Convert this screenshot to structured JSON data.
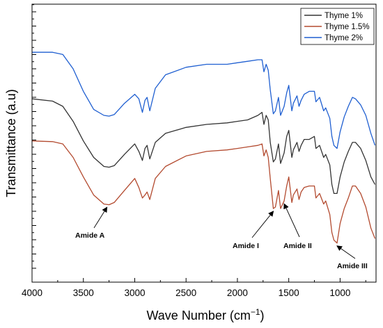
{
  "chart_data": {
    "type": "line",
    "xlabel": "Wave Number (cm",
    "xlabel_sup": "−1",
    "xlabel_close": ")",
    "ylabel": "Transmittance (a.u)",
    "xlim": [
      4000,
      650
    ],
    "x_reversed": true,
    "x_ticks": [
      4000,
      3500,
      3000,
      2500,
      2000,
      1500,
      1000
    ],
    "y_ticks_labeled": false,
    "grid": false,
    "legend_position": "top-right",
    "series": [
      {
        "name": "Thyme 1%",
        "color": "#333333",
        "x": [
          4000,
          3800,
          3700,
          3600,
          3500,
          3400,
          3300,
          3250,
          3200,
          3100,
          3000,
          2960,
          2925,
          2900,
          2880,
          2853,
          2800,
          2700,
          2500,
          2300,
          2100,
          2000,
          1900,
          1800,
          1760,
          1742,
          1720,
          1700,
          1680,
          1650,
          1630,
          1600,
          1580,
          1545,
          1520,
          1500,
          1470,
          1455,
          1420,
          1400,
          1380,
          1350,
          1300,
          1250,
          1235,
          1200,
          1160,
          1140,
          1100,
          1080,
          1060,
          1030,
          1000,
          960,
          920,
          880,
          850,
          800,
          750,
          700,
          660
        ],
        "y": [
          0.97,
          0.955,
          0.92,
          0.82,
          0.69,
          0.58,
          0.52,
          0.515,
          0.525,
          0.6,
          0.67,
          0.62,
          0.56,
          0.64,
          0.66,
          0.57,
          0.68,
          0.74,
          0.78,
          0.8,
          0.81,
          0.82,
          0.83,
          0.86,
          0.88,
          0.8,
          0.86,
          0.83,
          0.68,
          0.55,
          0.57,
          0.67,
          0.54,
          0.61,
          0.72,
          0.76,
          0.58,
          0.63,
          0.68,
          0.62,
          0.66,
          0.7,
          0.7,
          0.72,
          0.64,
          0.66,
          0.58,
          0.6,
          0.53,
          0.4,
          0.34,
          0.34,
          0.45,
          0.55,
          0.62,
          0.68,
          0.68,
          0.64,
          0.56,
          0.45,
          0.4
        ]
      },
      {
        "name": "Thyme 1.5%",
        "color": "#b34a2f",
        "x": [
          4000,
          3800,
          3700,
          3600,
          3500,
          3400,
          3300,
          3250,
          3200,
          3100,
          3000,
          2960,
          2925,
          2900,
          2880,
          2853,
          2800,
          2700,
          2500,
          2300,
          2100,
          2000,
          1900,
          1800,
          1760,
          1742,
          1720,
          1700,
          1680,
          1650,
          1630,
          1600,
          1580,
          1545,
          1520,
          1500,
          1470,
          1455,
          1420,
          1400,
          1380,
          1350,
          1300,
          1250,
          1235,
          1200,
          1160,
          1140,
          1100,
          1080,
          1060,
          1030,
          1000,
          960,
          920,
          880,
          850,
          800,
          750,
          700,
          660
        ],
        "y": [
          0.69,
          0.685,
          0.67,
          0.58,
          0.45,
          0.33,
          0.27,
          0.265,
          0.28,
          0.36,
          0.44,
          0.38,
          0.31,
          0.33,
          0.35,
          0.3,
          0.44,
          0.52,
          0.59,
          0.62,
          0.63,
          0.64,
          0.65,
          0.66,
          0.67,
          0.59,
          0.63,
          0.58,
          0.44,
          0.24,
          0.25,
          0.36,
          0.24,
          0.29,
          0.39,
          0.45,
          0.28,
          0.33,
          0.37,
          0.3,
          0.35,
          0.38,
          0.39,
          0.39,
          0.31,
          0.34,
          0.27,
          0.29,
          0.2,
          0.08,
          0.03,
          0.01,
          0.14,
          0.24,
          0.31,
          0.39,
          0.39,
          0.34,
          0.25,
          0.11,
          0.04
        ]
      },
      {
        "name": "Thyme 2%",
        "color": "#1f5fd1",
        "x": [
          4000,
          3800,
          3700,
          3600,
          3500,
          3400,
          3300,
          3250,
          3200,
          3100,
          3000,
          2960,
          2925,
          2900,
          2880,
          2853,
          2800,
          2700,
          2500,
          2300,
          2100,
          2000,
          1900,
          1800,
          1760,
          1742,
          1720,
          1700,
          1680,
          1650,
          1630,
          1600,
          1580,
          1545,
          1520,
          1500,
          1470,
          1455,
          1420,
          1400,
          1380,
          1350,
          1300,
          1250,
          1235,
          1200,
          1160,
          1140,
          1100,
          1080,
          1060,
          1030,
          1000,
          960,
          920,
          880,
          850,
          800,
          750,
          700,
          660
        ],
        "y": [
          1.28,
          1.28,
          1.265,
          1.17,
          1.02,
          0.9,
          0.86,
          0.855,
          0.865,
          0.94,
          1.0,
          0.97,
          0.88,
          0.96,
          0.98,
          0.89,
          1.04,
          1.13,
          1.18,
          1.2,
          1.2,
          1.21,
          1.22,
          1.23,
          1.23,
          1.15,
          1.2,
          1.16,
          1.03,
          0.87,
          0.89,
          0.98,
          0.86,
          0.92,
          1.01,
          1.06,
          0.89,
          0.94,
          0.99,
          0.92,
          0.96,
          1.0,
          1.02,
          1.02,
          0.95,
          0.98,
          0.89,
          0.91,
          0.84,
          0.72,
          0.66,
          0.64,
          0.75,
          0.85,
          0.92,
          0.98,
          0.97,
          0.93,
          0.86,
          0.74,
          0.66
        ]
      }
    ],
    "annotations": [
      {
        "text": "Amide A",
        "target_x": 3270,
        "target_series": 1
      },
      {
        "text": "Amide I",
        "target_x": 1650,
        "target_series": 1
      },
      {
        "text": "Amide II",
        "target_x": 1545,
        "target_series": 1
      },
      {
        "text": "Amide III",
        "target_x": 1030,
        "target_series": 1
      }
    ]
  }
}
